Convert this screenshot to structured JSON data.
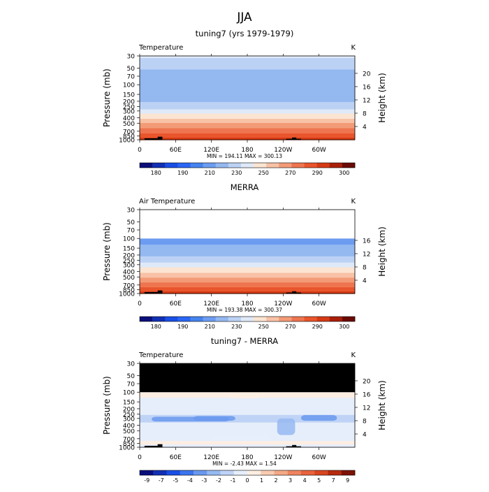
{
  "page": {
    "title": "JJA"
  },
  "axes": {
    "pressure_ticks": [
      "30",
      "50",
      "70",
      "100",
      "150",
      "200",
      "250",
      "300",
      "400",
      "500",
      "700",
      "850",
      "1000"
    ],
    "pressure_values": [
      30,
      50,
      70,
      100,
      150,
      200,
      250,
      300,
      400,
      500,
      700,
      850,
      1000
    ],
    "pressure_range": [
      30,
      1000
    ],
    "lon_ticks": [
      "0",
      "60E",
      "120E",
      "180",
      "120W",
      "60W"
    ],
    "lon_values": [
      0,
      60,
      120,
      180,
      240,
      300
    ],
    "lon_range": [
      0,
      360
    ],
    "left_label": "Pressure (mb)",
    "right_label": "Height (km)"
  },
  "colors": {
    "temp_fills": [
      "#0a0f7a",
      "#1230b4",
      "#1a4fe6",
      "#2a66f5",
      "#4583ee",
      "#6d9df1",
      "#94b8f0",
      "#bcd2f5",
      "#dfe9f8",
      "#fbe5d2",
      "#f8c2a6",
      "#f39b77",
      "#ee7550",
      "#e9552c",
      "#d63a14",
      "#a8200a",
      "#6a0a04"
    ],
    "diff_fills": [
      "#0a0f7a",
      "#1230b4",
      "#1a4fe6",
      "#3c74ee",
      "#6a99ef",
      "#96b9f1",
      "#bfd3f6",
      "#e6eefb",
      "#fdeee2",
      "#f8cbb1",
      "#f3a885",
      "#ee8560",
      "#e9633d",
      "#d8461f",
      "#b62a0e",
      "#7d1206"
    ],
    "black": "#000000"
  },
  "chart_data": [
    {
      "type": "heatmap",
      "title": "tuning7 (yrs 1979-1979)",
      "left_title": "Temperature",
      "unit": "K",
      "stats": "MIN = 194.11   MAX = 300.13",
      "height_ticks": [
        "20",
        "16",
        "12",
        "8",
        "4"
      ],
      "height_values": [
        20,
        16,
        12,
        8,
        4
      ],
      "colorbar_labels": [
        "180",
        "190",
        "210",
        "230",
        "250",
        "270",
        "290",
        "300"
      ],
      "colorbar_label_levels": [
        180,
        190,
        210,
        230,
        250,
        270,
        290,
        300
      ],
      "levels": [
        175,
        180,
        185,
        190,
        200,
        210,
        220,
        230,
        240,
        250,
        260,
        270,
        280,
        290,
        295,
        300
      ],
      "profile": [
        {
          "p": 30,
          "t": 232
        },
        {
          "p": 40,
          "t": 226
        },
        {
          "p": 50,
          "t": 221
        },
        {
          "p": 70,
          "t": 216
        },
        {
          "p": 90,
          "t": 212
        },
        {
          "p": 100,
          "t": 210
        },
        {
          "p": 120,
          "t": 212
        },
        {
          "p": 150,
          "t": 215
        },
        {
          "p": 200,
          "t": 219
        },
        {
          "p": 250,
          "t": 225
        },
        {
          "p": 300,
          "t": 234
        },
        {
          "p": 400,
          "t": 249
        },
        {
          "p": 500,
          "t": 260
        },
        {
          "p": 600,
          "t": 268
        },
        {
          "p": 700,
          "t": 276
        },
        {
          "p": 850,
          "t": 286
        },
        {
          "p": 1000,
          "t": 296
        }
      ],
      "top_mask_p": null
    },
    {
      "type": "heatmap",
      "title": "MERRA",
      "left_title": "Air Temperature",
      "unit": "K",
      "stats": "MIN = 193.38   MAX = 300.37",
      "height_ticks": [
        "16",
        "12",
        "8",
        "4"
      ],
      "height_values": [
        16,
        12,
        8,
        4
      ],
      "colorbar_labels": [
        "180",
        "190",
        "210",
        "230",
        "250",
        "270",
        "290",
        "300"
      ],
      "colorbar_label_levels": [
        180,
        190,
        210,
        230,
        250,
        270,
        290,
        300
      ],
      "levels": [
        175,
        180,
        185,
        190,
        200,
        210,
        220,
        230,
        240,
        250,
        260,
        270,
        280,
        290,
        295,
        300
      ],
      "profile": [
        {
          "p": 100,
          "t": 205
        },
        {
          "p": 120,
          "t": 208
        },
        {
          "p": 150,
          "t": 213
        },
        {
          "p": 200,
          "t": 218
        },
        {
          "p": 250,
          "t": 225
        },
        {
          "p": 300,
          "t": 234
        },
        {
          "p": 400,
          "t": 248
        },
        {
          "p": 500,
          "t": 259
        },
        {
          "p": 600,
          "t": 267
        },
        {
          "p": 700,
          "t": 275
        },
        {
          "p": 850,
          "t": 285
        },
        {
          "p": 1000,
          "t": 295
        }
      ],
      "top_mask_p": 100,
      "top_mask_color": "white"
    },
    {
      "type": "heatmap",
      "title": "tuning7 - MERRA",
      "left_title": "Temperature",
      "unit": "K",
      "stats": "MIN = -2.43   MAX = 1.54",
      "height_ticks": [
        "20",
        "16",
        "12",
        "8",
        "4"
      ],
      "height_values": [
        20,
        16,
        12,
        8,
        4
      ],
      "colorbar_labels": [
        "-9",
        "-7",
        "-5",
        "-4",
        "-3",
        "-2",
        "-1",
        "0",
        "1",
        "2",
        "3",
        "4",
        "5",
        "7",
        "9"
      ],
      "colorbar_label_levels": [
        -9,
        -7,
        -5,
        -4,
        -3,
        -2,
        -1,
        0,
        1,
        2,
        3,
        4,
        5,
        7,
        9
      ],
      "levels": [
        -9,
        -7,
        -5,
        -4,
        -3,
        -2,
        -1,
        0,
        1,
        2,
        3,
        4,
        5,
        7,
        9
      ],
      "profile": [
        {
          "p": 100,
          "t": 0.4
        },
        {
          "p": 150,
          "t": -0.3
        },
        {
          "p": 200,
          "t": -0.6
        },
        {
          "p": 250,
          "t": -0.9
        },
        {
          "p": 300,
          "t": -1.3
        },
        {
          "p": 400,
          "t": -0.8
        },
        {
          "p": 500,
          "t": -0.6
        },
        {
          "p": 600,
          "t": -0.7
        },
        {
          "p": 700,
          "t": -0.3
        },
        {
          "p": 850,
          "t": 0.3
        },
        {
          "p": 1000,
          "t": -0.5
        }
      ],
      "top_mask_p": 100,
      "top_mask_color": "black"
    }
  ]
}
